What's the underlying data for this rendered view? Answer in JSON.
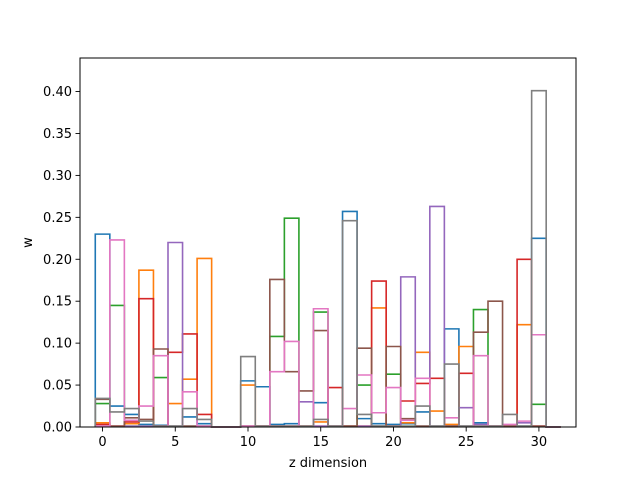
{
  "chart_data": {
    "type": "bar",
    "histtype": "step",
    "title": "",
    "xlabel": "z dimension",
    "ylabel": "w",
    "xlim": [
      -1.55,
      32.55
    ],
    "ylim": [
      0,
      0.44
    ],
    "xticks": [
      0,
      5,
      10,
      15,
      20,
      25,
      30
    ],
    "yticks": [
      0.0,
      0.05,
      0.1,
      0.15,
      0.2,
      0.25,
      0.3,
      0.35,
      0.4
    ],
    "ytick_labels": [
      "0.00",
      "0.05",
      "0.10",
      "0.15",
      "0.20",
      "0.25",
      "0.30",
      "0.35",
      "0.40"
    ],
    "bin_start": -0.5,
    "bin_width": 1,
    "grid": false,
    "legend": false,
    "series": [
      {
        "color": "#1f77b4",
        "values": [
          0.23,
          0.025,
          0.015,
          0.003,
          0.002,
          0.001,
          0.012,
          0.004,
          0,
          0,
          0.055,
          0.048,
          0.003,
          0.004,
          0.001,
          0.029,
          0.001,
          0.257,
          0.01,
          0.004,
          0.003,
          0.004,
          0.018,
          0.001,
          0.117,
          0.001,
          0.005,
          0.001,
          0.001,
          0.001,
          0.225,
          0
        ]
      },
      {
        "color": "#ff7f0e",
        "values": [
          0.005,
          0.001,
          0.004,
          0.187,
          0.001,
          0.028,
          0.057,
          0.201,
          0,
          0,
          0.05,
          0.001,
          0.001,
          0.001,
          0.001,
          0.006,
          0.001,
          0.001,
          0.001,
          0.142,
          0.001,
          0.005,
          0.089,
          0.019,
          0.003,
          0.096,
          0.001,
          0.001,
          0.001,
          0.122,
          0.001,
          0
        ]
      },
      {
        "color": "#2ca02c",
        "values": [
          0.028,
          0.145,
          0.001,
          0.001,
          0.059,
          0.001,
          0.001,
          0.001,
          0,
          0,
          0.001,
          0.001,
          0.108,
          0.249,
          0.001,
          0.137,
          0.001,
          0.001,
          0.05,
          0.001,
          0.063,
          0.001,
          0.001,
          0.001,
          0.001,
          0.001,
          0.14,
          0.001,
          0.001,
          0.001,
          0.027,
          0
        ]
      },
      {
        "color": "#d62728",
        "values": [
          0.003,
          0.001,
          0.006,
          0.153,
          0.001,
          0.089,
          0.111,
          0.015,
          0,
          0,
          0.001,
          0.001,
          0.001,
          0.001,
          0.001,
          0.001,
          0.047,
          0.001,
          0.001,
          0.174,
          0.001,
          0.031,
          0.052,
          0.058,
          0.001,
          0.064,
          0.001,
          0.001,
          0.001,
          0.2,
          0.001,
          0
        ]
      },
      {
        "color": "#9467bd",
        "values": [
          0.001,
          0.001,
          0.001,
          0.001,
          0.001,
          0.22,
          0.001,
          0.001,
          0,
          0,
          0.001,
          0.001,
          0.001,
          0.001,
          0.03,
          0.001,
          0.001,
          0.001,
          0.001,
          0.001,
          0.001,
          0.179,
          0.001,
          0.263,
          0.001,
          0.023,
          0.003,
          0.001,
          0.001,
          0.005,
          0.001,
          0
        ]
      },
      {
        "color": "#8c564b",
        "values": [
          0.033,
          0.001,
          0.011,
          0.009,
          0.093,
          0.001,
          0.001,
          0.001,
          0,
          0,
          0.001,
          0.001,
          0.176,
          0.066,
          0.043,
          0.115,
          0.001,
          0.001,
          0.094,
          0.001,
          0.096,
          0.01,
          0.001,
          0.001,
          0.001,
          0.001,
          0.113,
          0.15,
          0.001,
          0.001,
          0.001,
          0
        ]
      },
      {
        "color": "#e377c2",
        "values": [
          0.001,
          0.223,
          0.008,
          0.025,
          0.085,
          0.001,
          0.042,
          0.001,
          0,
          0,
          0.001,
          0.001,
          0.066,
          0.102,
          0.001,
          0.141,
          0.001,
          0.022,
          0.062,
          0.017,
          0.047,
          0.008,
          0.058,
          0.001,
          0.011,
          0.001,
          0.085,
          0.001,
          0.003,
          0.007,
          0.11,
          0
        ]
      },
      {
        "color": "#7f7f7f",
        "values": [
          0.034,
          0.018,
          0.022,
          0.007,
          0.001,
          0.001,
          0.022,
          0.009,
          0,
          0,
          0.084,
          0.001,
          0.001,
          0.001,
          0.001,
          0.009,
          0.001,
          0.246,
          0.015,
          0.001,
          0.001,
          0.001,
          0.025,
          0.001,
          0.075,
          0.001,
          0.001,
          0.001,
          0.015,
          0.001,
          0.401,
          0
        ]
      }
    ]
  }
}
